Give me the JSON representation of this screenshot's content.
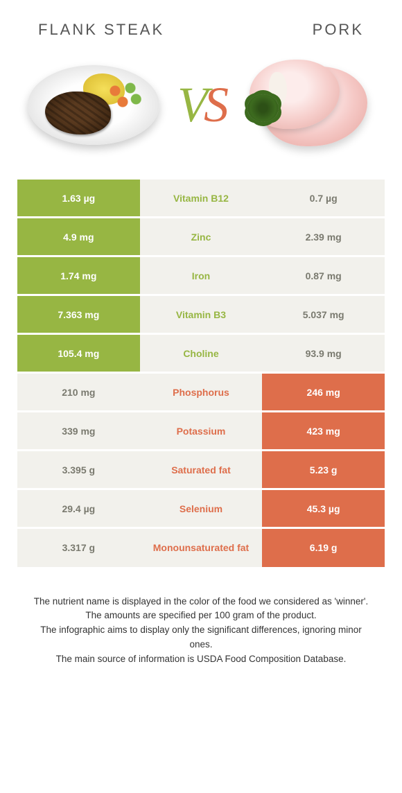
{
  "colors": {
    "left_win": "#97b643",
    "right_win": "#de6e4b",
    "neutral_bg": "#f2f1ec",
    "neutral_text": "#7a7a6f",
    "title_text": "#555",
    "body_text": "#333",
    "background": "#ffffff"
  },
  "typography": {
    "title_fontsize": 22,
    "title_letterspacing": 3,
    "vs_fontsize": 72,
    "cell_fontsize": 14,
    "footnote_fontsize": 13.5
  },
  "header": {
    "left_title": "Flank steak",
    "right_title": "Pork",
    "vs_v": "V",
    "vs_s": "S"
  },
  "rows": [
    {
      "nutrient": "Vitamin B12",
      "left": "1.63 µg",
      "right": "0.7 µg",
      "winner": "left"
    },
    {
      "nutrient": "Zinc",
      "left": "4.9 mg",
      "right": "2.39 mg",
      "winner": "left"
    },
    {
      "nutrient": "Iron",
      "left": "1.74 mg",
      "right": "0.87 mg",
      "winner": "left"
    },
    {
      "nutrient": "Vitamin B3",
      "left": "7.363 mg",
      "right": "5.037 mg",
      "winner": "left"
    },
    {
      "nutrient": "Choline",
      "left": "105.4 mg",
      "right": "93.9 mg",
      "winner": "left"
    },
    {
      "nutrient": "Phosphorus",
      "left": "210 mg",
      "right": "246 mg",
      "winner": "right"
    },
    {
      "nutrient": "Potassium",
      "left": "339 mg",
      "right": "423 mg",
      "winner": "right"
    },
    {
      "nutrient": "Saturated fat",
      "left": "3.395 g",
      "right": "5.23 g",
      "winner": "right"
    },
    {
      "nutrient": "Selenium",
      "left": "29.4 µg",
      "right": "45.3 µg",
      "winner": "right"
    },
    {
      "nutrient": "Monounsaturated fat",
      "left": "3.317 g",
      "right": "6.19 g",
      "winner": "right"
    }
  ],
  "footnotes": [
    "The nutrient name is displayed in the color of the food we considered as 'winner'.",
    "The amounts are specified per 100 gram of the product.",
    "The infographic aims to display only the significant differences, ignoring minor ones.",
    "The main source of information is USDA Food Composition Database."
  ]
}
